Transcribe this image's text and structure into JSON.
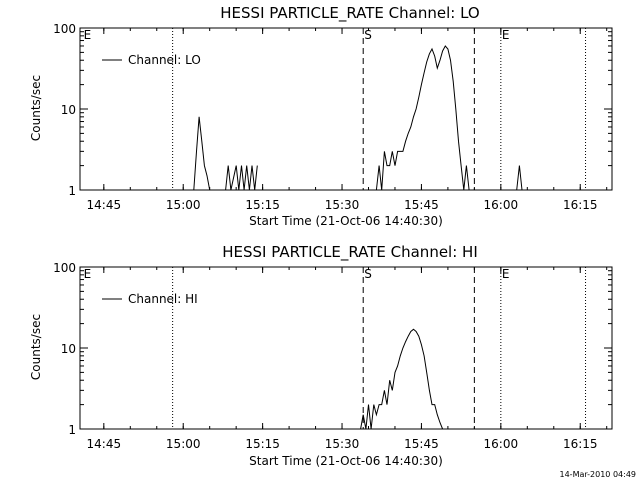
{
  "chart_data": [
    {
      "type": "line",
      "title": "HESSI PARTICLE_RATE Channel: LO",
      "xlabel": "Start Time (21-Oct-06 14:40:30)",
      "ylabel": "Counts/sec",
      "yscale": "log",
      "ylim": [
        1,
        100
      ],
      "xlim_minutes_after_1440": [
        0.5,
        101
      ],
      "x_ticks": [
        "14:45",
        "15:00",
        "15:15",
        "15:30",
        "15:45",
        "16:00",
        "16:15"
      ],
      "y_ticks": [
        "1",
        "10",
        "100"
      ],
      "legend": [
        "Channel: LO"
      ],
      "legend_position": "top-left",
      "grid": false,
      "markers": [
        {
          "label": "E",
          "time": "14:41",
          "style": "corner-label"
        },
        {
          "label": "",
          "time": "14:58",
          "style": "dotted"
        },
        {
          "label": "S",
          "time": "15:34",
          "style": "dashed"
        },
        {
          "label": "",
          "time": "15:55",
          "style": "dashed"
        },
        {
          "label": "E",
          "time": "16:00",
          "style": "dotted"
        },
        {
          "label": "",
          "time": "16:16",
          "style": "dotted"
        }
      ],
      "series": [
        {
          "name": "Channel: LO",
          "x": [
            56.5,
            57,
            57.5,
            58,
            58.5,
            59,
            59.5,
            60,
            60.5,
            61,
            61.5,
            62,
            62.5,
            63,
            63.5,
            64,
            64.5,
            65,
            65.5,
            66,
            66.5,
            67,
            67.5,
            68,
            68.5,
            69,
            69.5,
            70,
            70.5,
            71,
            71.5,
            72,
            72.5,
            73,
            73.5,
            74,
            74.5,
            75,
            75.5,
            76,
            76.5,
            77,
            77.5
          ],
          "y": [
            1,
            2,
            1,
            3,
            2,
            2,
            3,
            2,
            3,
            3,
            3,
            4,
            5,
            6,
            8,
            10,
            14,
            20,
            28,
            38,
            48,
            55,
            45,
            32,
            40,
            52,
            60,
            55,
            40,
            22,
            10,
            4,
            2,
            1,
            2,
            1,
            1,
            1,
            1,
            1,
            1,
            1,
            1
          ]
        },
        {
          "name": "",
          "x": [
            22,
            22.5,
            23,
            23.5,
            24,
            24.5,
            25
          ],
          "y": [
            1,
            3,
            8,
            4,
            2,
            1.5,
            1
          ]
        },
        {
          "name": "",
          "x": [
            28,
            28.5,
            29,
            30,
            30.5,
            31,
            31.5,
            32,
            32.5,
            33,
            33.5,
            34
          ],
          "y": [
            1,
            2,
            1,
            2,
            1,
            2,
            1,
            2,
            1,
            2,
            1,
            2
          ]
        },
        {
          "name": "",
          "x": [
            83,
            83.5,
            84
          ],
          "y": [
            1,
            2,
            1
          ]
        }
      ]
    },
    {
      "type": "line",
      "title": "HESSI PARTICLE_RATE Channel: HI",
      "xlabel": "Start Time (21-Oct-06 14:40:30)",
      "ylabel": "Counts/sec",
      "yscale": "log",
      "ylim": [
        1,
        100
      ],
      "xlim_minutes_after_1440": [
        0.5,
        101
      ],
      "x_ticks": [
        "14:45",
        "15:00",
        "15:15",
        "15:30",
        "15:45",
        "16:00",
        "16:15"
      ],
      "y_ticks": [
        "1",
        "10",
        "100"
      ],
      "legend": [
        "Channel: HI"
      ],
      "legend_position": "top-left",
      "grid": false,
      "markers": [
        {
          "label": "E",
          "time": "14:41",
          "style": "corner-label"
        },
        {
          "label": "",
          "time": "14:58",
          "style": "dotted"
        },
        {
          "label": "S",
          "time": "15:34",
          "style": "dashed"
        },
        {
          "label": "",
          "time": "15:55",
          "style": "dashed"
        },
        {
          "label": "E",
          "time": "16:00",
          "style": "dotted"
        },
        {
          "label": "",
          "time": "16:16",
          "style": "dotted"
        }
      ],
      "series": [
        {
          "name": "Channel: HI",
          "x": [
            53.5,
            54,
            54.5,
            55,
            55.5,
            56,
            56.5,
            57,
            57.5,
            58,
            58.5,
            59,
            59.5,
            60,
            60.5,
            61,
            61.5,
            62,
            62.5,
            63,
            63.5,
            64,
            64.5,
            65,
            65.5,
            66,
            66.5,
            67,
            67.5,
            68,
            68.5,
            69
          ],
          "y": [
            1,
            1.5,
            1,
            2,
            1,
            2,
            1.5,
            2,
            2,
            3,
            2,
            4,
            3,
            5,
            6,
            8,
            10,
            12,
            14,
            16,
            17,
            16,
            14,
            11,
            8,
            5,
            3,
            2,
            2,
            1.5,
            1.2,
            1
          ]
        }
      ]
    }
  ],
  "footer_timestamp": "14-Mar-2010 04:49"
}
